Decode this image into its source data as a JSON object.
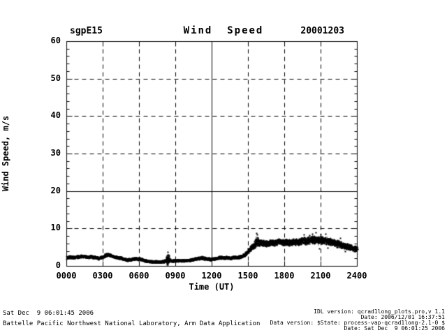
{
  "header": {
    "site_label": "sgpE15",
    "title": "Wind  Speed",
    "date_label": "20001203"
  },
  "chart_data": {
    "type": "scatter",
    "title": "Wind Speed",
    "xlabel": "Time (UT)",
    "ylabel": "Wind Speed, m/s",
    "xlim": [
      0,
      24
    ],
    "ylim": [
      0,
      60
    ],
    "grid": "dashed, solid gridline at x=1200 and y=20",
    "legend": "none",
    "marker_color": "#000000",
    "xticks": {
      "values": [
        0,
        3,
        6,
        9,
        12,
        15,
        18,
        21,
        24
      ],
      "labels": [
        "0000",
        "0300",
        "0600",
        "0900",
        "1200",
        "1500",
        "1800",
        "2100",
        "2400"
      ],
      "solid_grid_value": 12
    },
    "yticks": {
      "values": [
        0,
        10,
        20,
        30,
        40,
        50,
        60
      ],
      "labels": [
        "0",
        "10",
        "20",
        "30",
        "40",
        "50",
        "60"
      ],
      "minor_step": 2,
      "solid_grid_value": 20
    },
    "series": [
      {
        "name": "wind speed (m/s)",
        "points": [
          [
            0.0,
            2.3,
            0.35
          ],
          [
            0.33,
            2.4,
            0.35
          ],
          [
            0.67,
            2.3,
            0.35
          ],
          [
            1.0,
            2.5,
            0.35
          ],
          [
            1.33,
            2.6,
            0.35
          ],
          [
            1.67,
            2.4,
            0.35
          ],
          [
            2.0,
            2.5,
            0.35
          ],
          [
            2.33,
            2.3,
            0.35
          ],
          [
            2.67,
            2.1,
            0.35
          ],
          [
            3.0,
            2.5,
            0.35
          ],
          [
            3.25,
            3.0,
            0.4
          ],
          [
            3.5,
            3.0,
            0.4
          ],
          [
            3.75,
            2.7,
            0.35
          ],
          [
            4.0,
            2.4,
            0.35
          ],
          [
            4.33,
            2.2,
            0.35
          ],
          [
            4.67,
            1.9,
            0.35
          ],
          [
            5.0,
            1.6,
            0.3
          ],
          [
            5.33,
            1.8,
            0.3
          ],
          [
            5.67,
            2.0,
            0.35
          ],
          [
            6.0,
            1.9,
            0.35
          ],
          [
            6.33,
            1.6,
            0.3
          ],
          [
            6.67,
            1.3,
            0.3
          ],
          [
            7.0,
            1.2,
            0.3
          ],
          [
            7.33,
            1.2,
            0.3
          ],
          [
            7.67,
            1.1,
            0.3
          ],
          [
            8.0,
            1.2,
            0.3
          ],
          [
            8.2,
            1.5,
            0.4
          ],
          [
            8.35,
            2.0,
            1.8
          ],
          [
            8.5,
            1.5,
            0.4
          ],
          [
            8.83,
            1.4,
            0.3
          ],
          [
            9.17,
            1.5,
            0.3
          ],
          [
            9.5,
            1.4,
            0.3
          ],
          [
            9.83,
            1.5,
            0.3
          ],
          [
            10.17,
            1.6,
            0.3
          ],
          [
            10.5,
            1.8,
            0.35
          ],
          [
            10.83,
            2.0,
            0.35
          ],
          [
            11.17,
            2.2,
            0.35
          ],
          [
            11.5,
            2.0,
            0.35
          ],
          [
            11.83,
            1.8,
            0.35
          ],
          [
            12.17,
            1.9,
            0.35
          ],
          [
            12.5,
            2.2,
            0.35
          ],
          [
            12.83,
            2.3,
            0.35
          ],
          [
            13.17,
            2.2,
            0.35
          ],
          [
            13.5,
            2.1,
            0.35
          ],
          [
            13.83,
            2.3,
            0.35
          ],
          [
            14.17,
            2.3,
            0.35
          ],
          [
            14.5,
            2.6,
            0.4
          ],
          [
            14.75,
            3.1,
            0.5
          ],
          [
            15.0,
            4.0,
            0.6
          ],
          [
            15.25,
            4.9,
            0.7
          ],
          [
            15.5,
            5.6,
            0.8
          ],
          [
            15.7,
            6.5,
            1.6
          ],
          [
            15.9,
            6.2,
            0.8
          ],
          [
            16.17,
            6.2,
            0.8
          ],
          [
            16.5,
            6.0,
            0.8
          ],
          [
            16.83,
            6.3,
            0.8
          ],
          [
            17.17,
            6.2,
            0.8
          ],
          [
            17.5,
            6.5,
            0.8
          ],
          [
            17.83,
            6.3,
            0.8
          ],
          [
            18.17,
            6.4,
            0.85
          ],
          [
            18.5,
            6.2,
            0.85
          ],
          [
            18.83,
            6.5,
            0.9
          ],
          [
            19.17,
            6.4,
            0.9
          ],
          [
            19.5,
            6.7,
            0.9
          ],
          [
            19.83,
            6.8,
            1.0
          ],
          [
            20.17,
            7.0,
            1.0
          ],
          [
            20.5,
            7.0,
            1.1
          ],
          [
            20.83,
            7.0,
            1.0
          ],
          [
            21.17,
            6.9,
            1.0
          ],
          [
            21.5,
            6.7,
            1.0
          ],
          [
            21.83,
            6.5,
            1.0
          ],
          [
            22.17,
            6.2,
            0.9
          ],
          [
            22.5,
            5.8,
            0.9
          ],
          [
            22.83,
            5.4,
            0.9
          ],
          [
            23.17,
            5.2,
            0.8
          ],
          [
            23.5,
            4.9,
            0.8
          ],
          [
            23.83,
            4.7,
            0.8
          ],
          [
            24.0,
            4.6,
            0.8
          ]
        ]
      }
    ],
    "outliers": [
      [
        8.35,
        3.8
      ],
      [
        8.35,
        0.3
      ],
      [
        15.7,
        8.7
      ],
      [
        15.75,
        8.3
      ],
      [
        19.6,
        8.3
      ],
      [
        20.1,
        8.2
      ],
      [
        20.3,
        8.6
      ],
      [
        20.6,
        8.9
      ],
      [
        21.0,
        8.4
      ],
      [
        21.4,
        8.6
      ],
      [
        22.6,
        7.5
      ],
      [
        23.0,
        4.0
      ],
      [
        20.9,
        4.7
      ],
      [
        21.6,
        4.9
      ]
    ]
  },
  "footer_left": {
    "line1": "Sat Dec  9 06:01:45 2006",
    "line2": "Battelle Pacific Northwest National Laboratory, Arm Data Application"
  },
  "footer_right": {
    "line1": "IDL version: qcrad1long_plots.pro,v 1.1",
    "line2": "Date: 2006/12/01 16:37:51",
    "line3": "Data version: $State: process-vap-qcrad1long-2.1-0 $",
    "line4": "Date: Sat Dec  9 06:01:25 2006"
  }
}
